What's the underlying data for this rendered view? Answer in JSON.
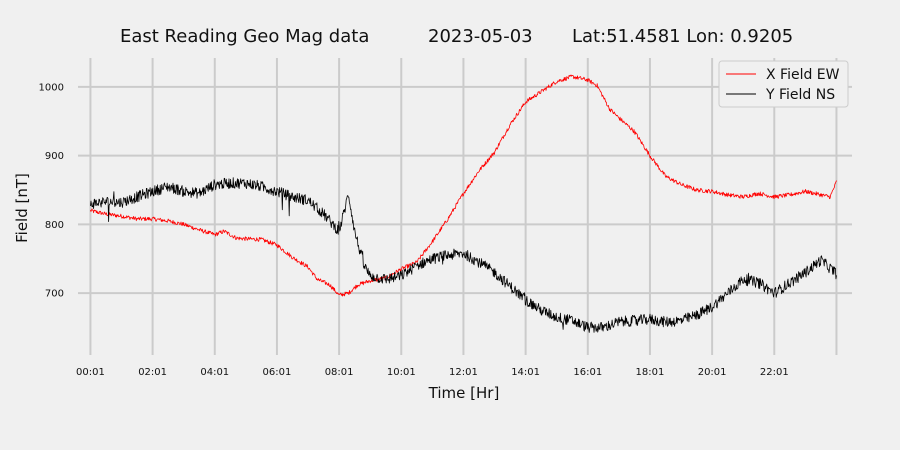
{
  "title": {
    "station": "East Reading Geo Mag data",
    "date": "2023-05-03",
    "location": "Lat:51.4581  Lon: 0.9205"
  },
  "chart_data": {
    "type": "line",
    "xlabel": "Time  [Hr]",
    "ylabel": "Field  [nT]",
    "xlim": [
      -0.4,
      24.5
    ],
    "ylim": [
      610,
      1042
    ],
    "x_ticks": [
      {
        "value": 0,
        "label": "00:01"
      },
      {
        "value": 2,
        "label": "02:01"
      },
      {
        "value": 4,
        "label": "04:01"
      },
      {
        "value": 6,
        "label": "06:01"
      },
      {
        "value": 8,
        "label": "08:01"
      },
      {
        "value": 10,
        "label": "10:01"
      },
      {
        "value": 12,
        "label": "12:01"
      },
      {
        "value": 14,
        "label": "14:01"
      },
      {
        "value": 16,
        "label": "16:01"
      },
      {
        "value": 18,
        "label": "18:01"
      },
      {
        "value": 20,
        "label": "20:01"
      },
      {
        "value": 22,
        "label": "22:01"
      }
    ],
    "extra_vertical_gridlines": [
      24
    ],
    "y_ticks": [
      700,
      800,
      900,
      1000
    ],
    "grid": true,
    "legend_position": "top-right",
    "series": [
      {
        "name": "X Field EW",
        "color": "#ff0000",
        "noise": 3,
        "x": [
          0,
          0.5,
          1,
          1.5,
          2,
          2.5,
          3,
          3.5,
          4,
          4.3,
          4.7,
          5,
          5.5,
          6,
          6.5,
          7,
          7.3,
          7.7,
          8,
          8.3,
          8.6,
          9,
          9.5,
          10,
          10.5,
          11,
          11.5,
          12,
          12.5,
          13,
          13.5,
          14,
          14.5,
          15,
          15.5,
          16,
          16.3,
          16.7,
          17,
          17.5,
          18,
          18.5,
          19,
          19.5,
          20,
          20.5,
          21,
          21.5,
          22,
          22.5,
          23,
          23.5,
          23.8,
          24
        ],
        "y": [
          820,
          815,
          812,
          808,
          808,
          805,
          800,
          792,
          785,
          790,
          780,
          779,
          778,
          770,
          752,
          738,
          720,
          712,
          697,
          700,
          712,
          718,
          722,
          735,
          745,
          775,
          808,
          845,
          878,
          905,
          945,
          978,
          993,
          1008,
          1015,
          1010,
          1002,
          968,
          955,
          935,
          900,
          870,
          858,
          850,
          848,
          843,
          840,
          845,
          840,
          843,
          848,
          843,
          840,
          862
        ]
      },
      {
        "name": "Y Field NS",
        "color": "#000000",
        "noise": 8,
        "x": [
          0,
          0.5,
          1,
          1.5,
          2,
          2.5,
          3,
          3.5,
          4,
          4.5,
          5,
          5.5,
          6,
          6.5,
          7,
          7.5,
          7.8,
          8,
          8.2,
          8.3,
          8.5,
          8.8,
          9,
          9.5,
          10,
          10.5,
          11,
          11.5,
          12,
          12.5,
          13,
          13.5,
          14,
          14.5,
          15,
          15.5,
          16,
          16.5,
          17,
          17.5,
          18,
          18.5,
          19,
          19.5,
          20,
          20.5,
          21,
          21.5,
          22,
          22.5,
          23,
          23.5,
          24
        ],
        "y": [
          830,
          833,
          832,
          840,
          848,
          855,
          848,
          845,
          858,
          860,
          860,
          855,
          848,
          840,
          835,
          815,
          800,
          790,
          825,
          845,
          790,
          740,
          725,
          720,
          725,
          740,
          750,
          755,
          758,
          745,
          730,
          710,
          690,
          675,
          665,
          660,
          650,
          650,
          658,
          660,
          662,
          658,
          660,
          668,
          680,
          700,
          720,
          715,
          700,
          715,
          730,
          748,
          728
        ]
      }
    ]
  }
}
